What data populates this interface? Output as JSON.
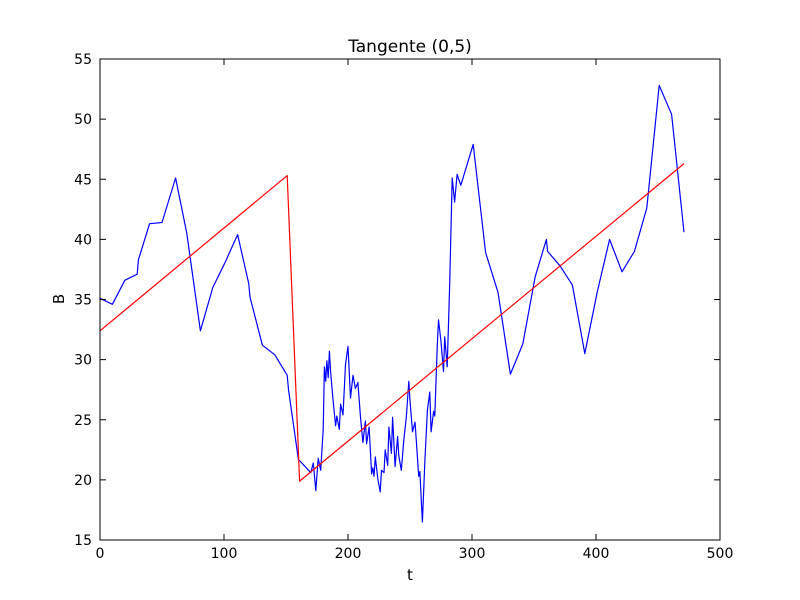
{
  "chart_data": {
    "type": "line",
    "title": "Tangente (0,5)",
    "xlabel": "t",
    "ylabel": "B",
    "xlim": [
      0,
      500
    ],
    "ylim": [
      15,
      55
    ],
    "xticks": [
      0,
      100,
      200,
      300,
      400,
      500
    ],
    "yticks": [
      15,
      20,
      25,
      30,
      35,
      40,
      45,
      50,
      55
    ],
    "grid": false,
    "series": [
      {
        "color": "#0000ff",
        "points": [
          [
            0,
            35.1
          ],
          [
            10,
            34.6
          ],
          [
            20,
            36.6
          ],
          [
            30,
            37.1
          ],
          [
            31,
            38.3
          ],
          [
            40,
            41.3
          ],
          [
            50,
            41.4
          ],
          [
            61,
            45.1
          ],
          [
            70,
            40.5
          ],
          [
            81,
            32.4
          ],
          [
            91,
            36.0
          ],
          [
            101,
            38.1
          ],
          [
            111,
            40.4
          ],
          [
            120,
            36.3
          ],
          [
            121,
            35.2
          ],
          [
            131,
            31.2
          ],
          [
            141,
            30.4
          ],
          [
            151,
            28.7
          ],
          [
            152,
            27.5
          ],
          [
            160,
            21.7
          ],
          [
            170,
            20.6
          ],
          [
            172,
            21.4
          ],
          [
            174,
            19.1
          ],
          [
            176,
            21.8
          ],
          [
            178,
            20.8
          ],
          [
            180,
            24.2
          ],
          [
            181,
            29.4
          ],
          [
            182,
            28.2
          ],
          [
            183,
            29.9
          ],
          [
            184,
            28.5
          ],
          [
            185,
            30.7
          ],
          [
            186,
            29.0
          ],
          [
            188,
            26.6
          ],
          [
            190,
            24.5
          ],
          [
            191,
            25.3
          ],
          [
            193,
            24.2
          ],
          [
            194,
            26.3
          ],
          [
            196,
            25.4
          ],
          [
            198,
            29.6
          ],
          [
            200,
            31.1
          ],
          [
            202,
            26.8
          ],
          [
            204,
            28.7
          ],
          [
            206,
            27.6
          ],
          [
            208,
            28.1
          ],
          [
            210,
            25.3
          ],
          [
            212,
            23.1
          ],
          [
            214,
            24.9
          ],
          [
            215,
            23.0
          ],
          [
            217,
            24.4
          ],
          [
            219,
            20.5
          ],
          [
            220,
            21.0
          ],
          [
            221,
            20.3
          ],
          [
            222,
            21.9
          ],
          [
            224,
            20.1
          ],
          [
            226,
            19.0
          ],
          [
            227,
            20.8
          ],
          [
            229,
            20.6
          ],
          [
            230,
            22.5
          ],
          [
            232,
            21.2
          ],
          [
            233,
            24.4
          ],
          [
            235,
            22.2
          ],
          [
            236,
            25.2
          ],
          [
            238,
            21.1
          ],
          [
            240,
            23.6
          ],
          [
            241,
            22.0
          ],
          [
            243,
            20.8
          ],
          [
            245,
            23.3
          ],
          [
            247,
            25.2
          ],
          [
            249,
            28.2
          ],
          [
            250,
            26.6
          ],
          [
            252,
            24.0
          ],
          [
            254,
            24.8
          ],
          [
            255,
            23.4
          ],
          [
            257,
            20.3
          ],
          [
            258,
            20.7
          ],
          [
            259,
            18.4
          ],
          [
            260,
            16.5
          ],
          [
            262,
            21.6
          ],
          [
            264,
            25.8
          ],
          [
            266,
            27.3
          ],
          [
            267,
            24.0
          ],
          [
            269,
            25.7
          ],
          [
            270,
            25.3
          ],
          [
            272,
            31.2
          ],
          [
            273,
            33.3
          ],
          [
            275,
            31.5
          ],
          [
            277,
            29.0
          ],
          [
            278,
            31.9
          ],
          [
            280,
            29.4
          ],
          [
            282,
            36.3
          ],
          [
            284,
            45.1
          ],
          [
            286,
            43.1
          ],
          [
            288,
            45.4
          ],
          [
            291,
            44.5
          ],
          [
            301,
            47.9
          ],
          [
            311,
            38.9
          ],
          [
            321,
            35.6
          ],
          [
            331,
            28.8
          ],
          [
            341,
            31.3
          ],
          [
            351,
            36.9
          ],
          [
            360,
            40.0
          ],
          [
            361,
            39.0
          ],
          [
            371,
            37.8
          ],
          [
            381,
            36.2
          ],
          [
            391,
            30.5
          ],
          [
            401,
            35.6
          ],
          [
            411,
            40.0
          ],
          [
            421,
            37.3
          ],
          [
            431,
            39.0
          ],
          [
            441,
            42.6
          ],
          [
            451,
            52.8
          ],
          [
            461,
            50.4
          ],
          [
            471,
            40.6
          ]
        ]
      },
      {
        "color": "#ff0000",
        "points": [
          [
            0,
            32.4
          ],
          [
            151,
            45.3
          ],
          [
            161,
            19.9
          ],
          [
            471,
            46.3
          ]
        ]
      }
    ]
  }
}
